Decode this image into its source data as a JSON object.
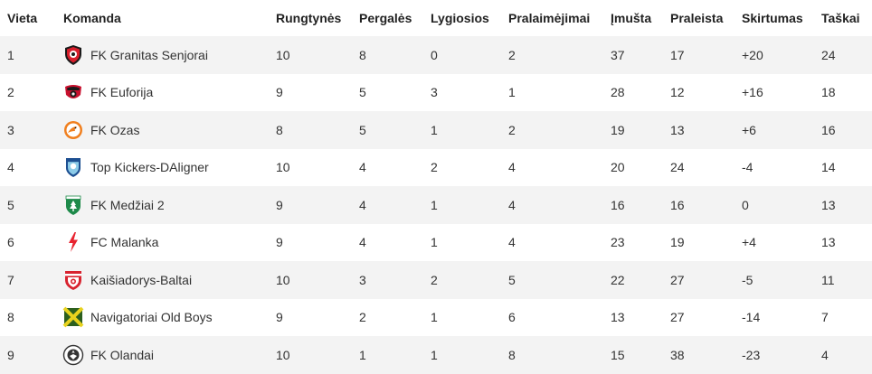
{
  "table": {
    "columns": [
      "Vieta",
      "Komanda",
      "Rungtynės",
      "Pergalės",
      "Lygiosios",
      "Pralaimėjimai",
      "Įmušta",
      "Praleista",
      "Skirtumas",
      "Taškai"
    ],
    "rows": [
      {
        "place": "1",
        "team": "FK Granitas Senjorai",
        "logo": "granitas-logo-icon",
        "played": "10",
        "won": "8",
        "drawn": "0",
        "lost": "2",
        "scored": "37",
        "conceded": "17",
        "diff": "+20",
        "points": "24"
      },
      {
        "place": "2",
        "team": "FK Euforija",
        "logo": "euforija-logo-icon",
        "played": "9",
        "won": "5",
        "drawn": "3",
        "lost": "1",
        "scored": "28",
        "conceded": "12",
        "diff": "+16",
        "points": "18"
      },
      {
        "place": "3",
        "team": "FK Ozas",
        "logo": "ozas-logo-icon",
        "played": "8",
        "won": "5",
        "drawn": "1",
        "lost": "2",
        "scored": "19",
        "conceded": "13",
        "diff": "+6",
        "points": "16"
      },
      {
        "place": "4",
        "team": "Top Kickers-DAligner",
        "logo": "top-kickers-logo-icon",
        "played": "10",
        "won": "4",
        "drawn": "2",
        "lost": "4",
        "scored": "20",
        "conceded": "24",
        "diff": "-4",
        "points": "14"
      },
      {
        "place": "5",
        "team": "FK Medžiai 2",
        "logo": "medziai-logo-icon",
        "played": "9",
        "won": "4",
        "drawn": "1",
        "lost": "4",
        "scored": "16",
        "conceded": "16",
        "diff": "0",
        "points": "13"
      },
      {
        "place": "6",
        "team": "FC Malanka",
        "logo": "malanka-logo-icon",
        "played": "9",
        "won": "4",
        "drawn": "1",
        "lost": "4",
        "scored": "23",
        "conceded": "19",
        "diff": "+4",
        "points": "13"
      },
      {
        "place": "7",
        "team": "Kaišiadorys-Baltai",
        "logo": "kaisiadorys-logo-icon",
        "played": "10",
        "won": "3",
        "drawn": "2",
        "lost": "5",
        "scored": "22",
        "conceded": "27",
        "diff": "-5",
        "points": "11"
      },
      {
        "place": "8",
        "team": "Navigatoriai Old Boys",
        "logo": "navigatoriai-logo-icon",
        "played": "9",
        "won": "2",
        "drawn": "1",
        "lost": "6",
        "scored": "13",
        "conceded": "27",
        "diff": "-14",
        "points": "7"
      },
      {
        "place": "9",
        "team": "FK Olandai",
        "logo": "olandai-logo-icon",
        "played": "10",
        "won": "1",
        "drawn": "1",
        "lost": "8",
        "scored": "15",
        "conceded": "38",
        "diff": "-23",
        "points": "4"
      }
    ]
  }
}
